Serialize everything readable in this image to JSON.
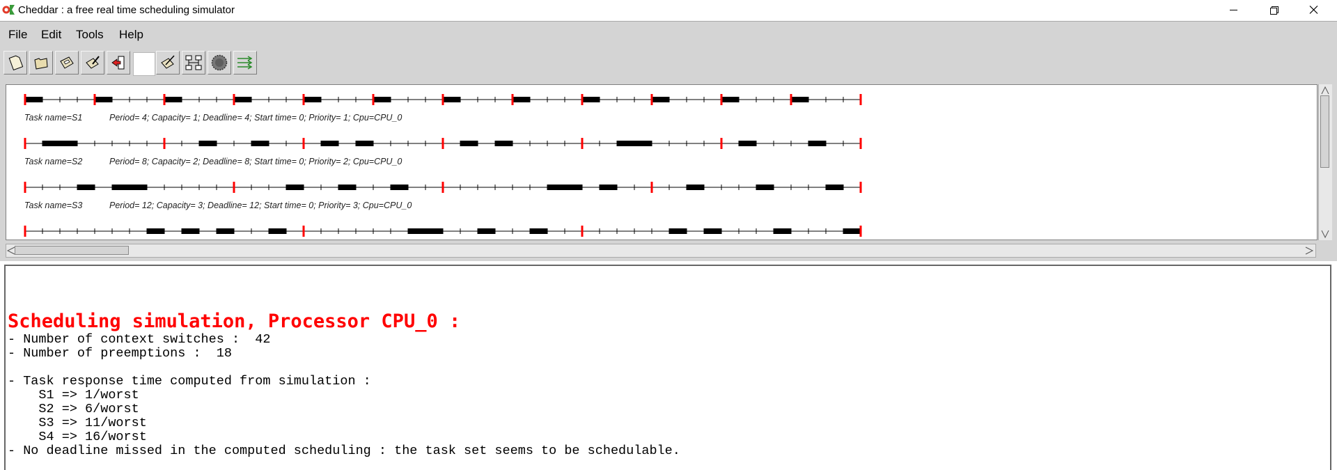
{
  "window": {
    "title": "Cheddar : a free real time scheduling simulator"
  },
  "menu": {
    "items": [
      "File",
      "Edit",
      "Tools",
      "Help"
    ]
  },
  "toolbar": {
    "buttons": [
      "new-file-icon",
      "open-folder-icon",
      "save-disk-icon",
      "edit-icon",
      "exit-icon",
      "edit-properties-icon",
      "network-icon",
      "gear-icon",
      "arrows-icon"
    ]
  },
  "colors": {
    "deadline_marker": "#ff0000",
    "execution_block": "#000000",
    "heading": "#ff0000"
  },
  "chart_data": {
    "type": "gantt",
    "time_range": [
      0,
      48
    ],
    "tasks": [
      {
        "label": "Task name=S1",
        "params": "Period= 4; Capacity= 1; Deadline= 4; Start time= 0; Priority= 1; Cpu=CPU_0",
        "period": 4,
        "executions": [
          [
            0,
            1
          ],
          [
            4,
            5
          ],
          [
            8,
            9
          ],
          [
            12,
            13
          ],
          [
            16,
            17
          ],
          [
            20,
            21
          ],
          [
            24,
            25
          ],
          [
            28,
            29
          ],
          [
            32,
            33
          ],
          [
            36,
            37
          ],
          [
            40,
            41
          ],
          [
            44,
            45
          ]
        ]
      },
      {
        "label": "Task name=S2",
        "params": "Period= 8; Capacity= 2; Deadline= 8; Start time= 0; Priority= 2; Cpu=CPU_0",
        "period": 8,
        "executions": [
          [
            1,
            3
          ],
          [
            10,
            11
          ],
          [
            13,
            14
          ],
          [
            17,
            18
          ],
          [
            19,
            20
          ],
          [
            25,
            26
          ],
          [
            27,
            28
          ],
          [
            34,
            36
          ],
          [
            41,
            42
          ],
          [
            45,
            46
          ]
        ]
      },
      {
        "label": "Task name=S3",
        "params": "Period= 12; Capacity= 3; Deadline= 12; Start time= 0; Priority= 3; Cpu=CPU_0",
        "period": 12,
        "executions": [
          [
            3,
            4
          ],
          [
            5,
            7
          ],
          [
            15,
            16
          ],
          [
            18,
            19
          ],
          [
            21,
            22
          ],
          [
            30,
            32
          ],
          [
            33,
            34
          ],
          [
            38,
            39
          ],
          [
            42,
            43
          ],
          [
            46,
            47
          ]
        ]
      },
      {
        "label": "",
        "params": "",
        "period": 16,
        "executions": [
          [
            7,
            8
          ],
          [
            9,
            10
          ],
          [
            11,
            12
          ],
          [
            14,
            15
          ],
          [
            22,
            24
          ],
          [
            26,
            27
          ],
          [
            29,
            30
          ],
          [
            37,
            38
          ],
          [
            39,
            40
          ],
          [
            43,
            44
          ],
          [
            47,
            48
          ]
        ]
      }
    ]
  },
  "output": {
    "heading": "Scheduling simulation, Processor CPU_0 :",
    "lines": [
      "- Number of context switches :  42",
      "- Number of preemptions :  18",
      "",
      "- Task response time computed from simulation :",
      "    S1 => 1/worst",
      "    S2 => 6/worst",
      "    S3 => 11/worst",
      "    S4 => 16/worst",
      "- No deadline missed in the computed scheduling : the task set seems to be schedulable."
    ]
  }
}
